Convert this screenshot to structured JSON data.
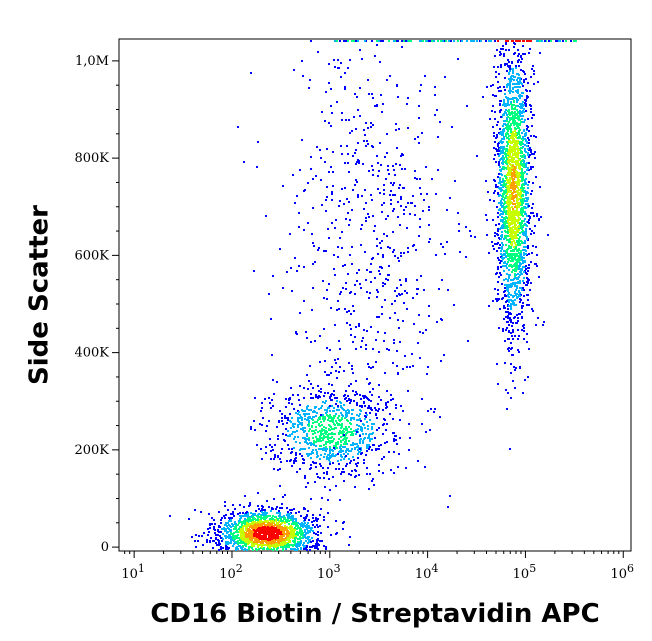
{
  "chart_data": {
    "type": "scatter",
    "title": "",
    "xlabel": "CD16 Biotin / Streptavidin APC",
    "ylabel": "Side Scatter",
    "x_scale": "log",
    "xlim": [
      7,
      1200000
    ],
    "ylim": [
      -8000,
      1045000
    ],
    "x_ticks": [
      {
        "value": 10,
        "base": "10",
        "exp": "1"
      },
      {
        "value": 100,
        "base": "10",
        "exp": "2"
      },
      {
        "value": 1000,
        "base": "10",
        "exp": "3"
      },
      {
        "value": 10000,
        "base": "10",
        "exp": "4"
      },
      {
        "value": 100000,
        "base": "10",
        "exp": "5"
      },
      {
        "value": 1000000,
        "base": "10",
        "exp": "6"
      }
    ],
    "y_ticks": [
      {
        "value": 0,
        "label": "0"
      },
      {
        "value": 200000,
        "label": "200K"
      },
      {
        "value": 400000,
        "label": "400K"
      },
      {
        "value": 600000,
        "label": "600K"
      },
      {
        "value": 800000,
        "label": "800K"
      },
      {
        "value": 1000000,
        "label": "1,0M"
      }
    ],
    "grid": false,
    "legend": "none",
    "density_colors": [
      "#0000ff",
      "#00b4ff",
      "#00ff80",
      "#c8ff00",
      "#ffa000",
      "#ff0000"
    ],
    "populations": [
      {
        "name_hint": "cluster-low",
        "x_center_log10": 2.35,
        "x_spread_log10": 0.25,
        "y_center": 30000,
        "y_spread": 25000,
        "count": 1800,
        "peak_density": 1.0
      },
      {
        "name_hint": "cluster-mid",
        "x_center_log10": 3.0,
        "x_spread_log10": 0.32,
        "y_center": 240000,
        "y_spread": 45000,
        "count": 900,
        "peak_density": 0.45
      },
      {
        "name_hint": "cluster-high",
        "x_center_log10": 4.87,
        "x_spread_log10": 0.09,
        "y_center": 740000,
        "y_spread": 150000,
        "count": 2200,
        "peak_density": 0.7
      },
      {
        "name_hint": "diffuse",
        "x_center_log10": 3.4,
        "x_spread_log10": 0.45,
        "y_center": 650000,
        "y_spread": 230000,
        "count": 650,
        "peak_density": 0.1
      }
    ]
  }
}
